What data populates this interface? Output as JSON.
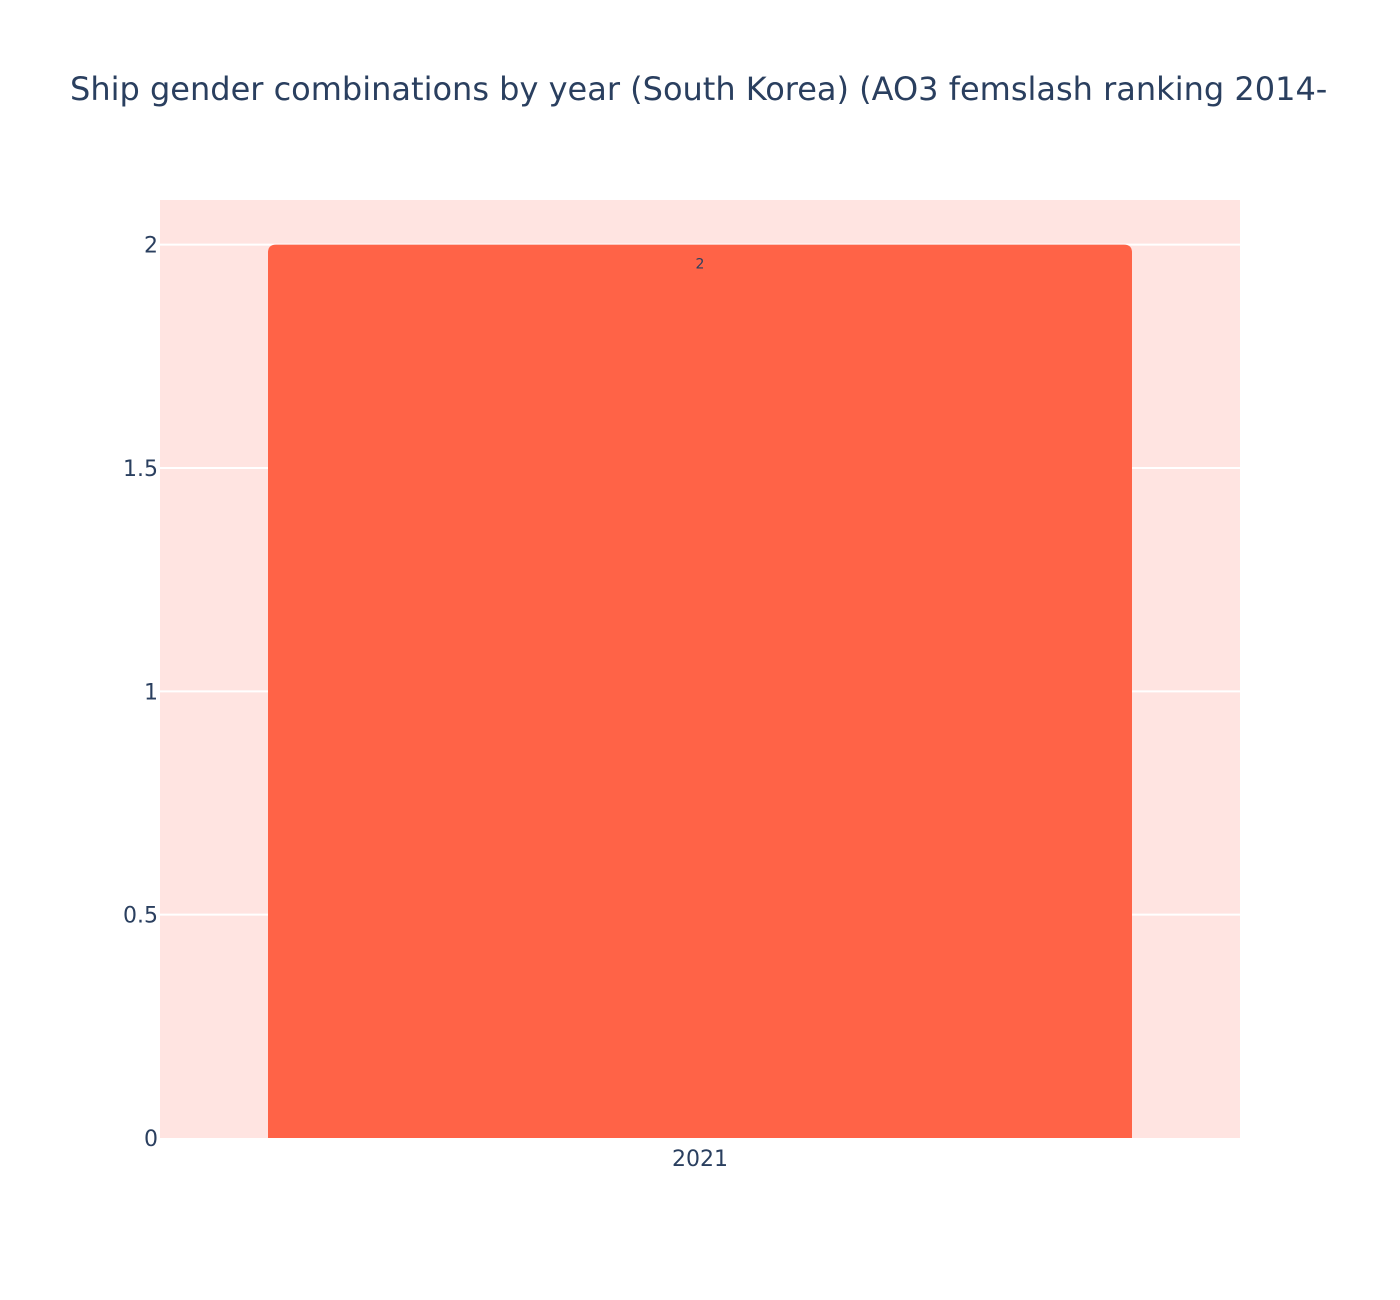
{
  "chart_data": {
    "type": "bar",
    "title": "Ship gender combinations by year (South Korea) (AO3 femslash ranking 2014-",
    "xlabel": "",
    "ylabel": "",
    "categories": [
      "2021"
    ],
    "series": [
      {
        "values": [
          2
        ],
        "data_labels": [
          "2"
        ],
        "color": "#ff6347"
      }
    ],
    "ylim": [
      0,
      2.1
    ],
    "y_ticks": [
      0,
      0.5,
      1,
      1.5,
      2
    ],
    "y_tick_labels": [
      "0",
      "0.5",
      "1",
      "1.5",
      "2"
    ],
    "grid": true,
    "legend": "none",
    "plot_background": "#ffe4e1",
    "gridline_color": "#ffffff"
  }
}
